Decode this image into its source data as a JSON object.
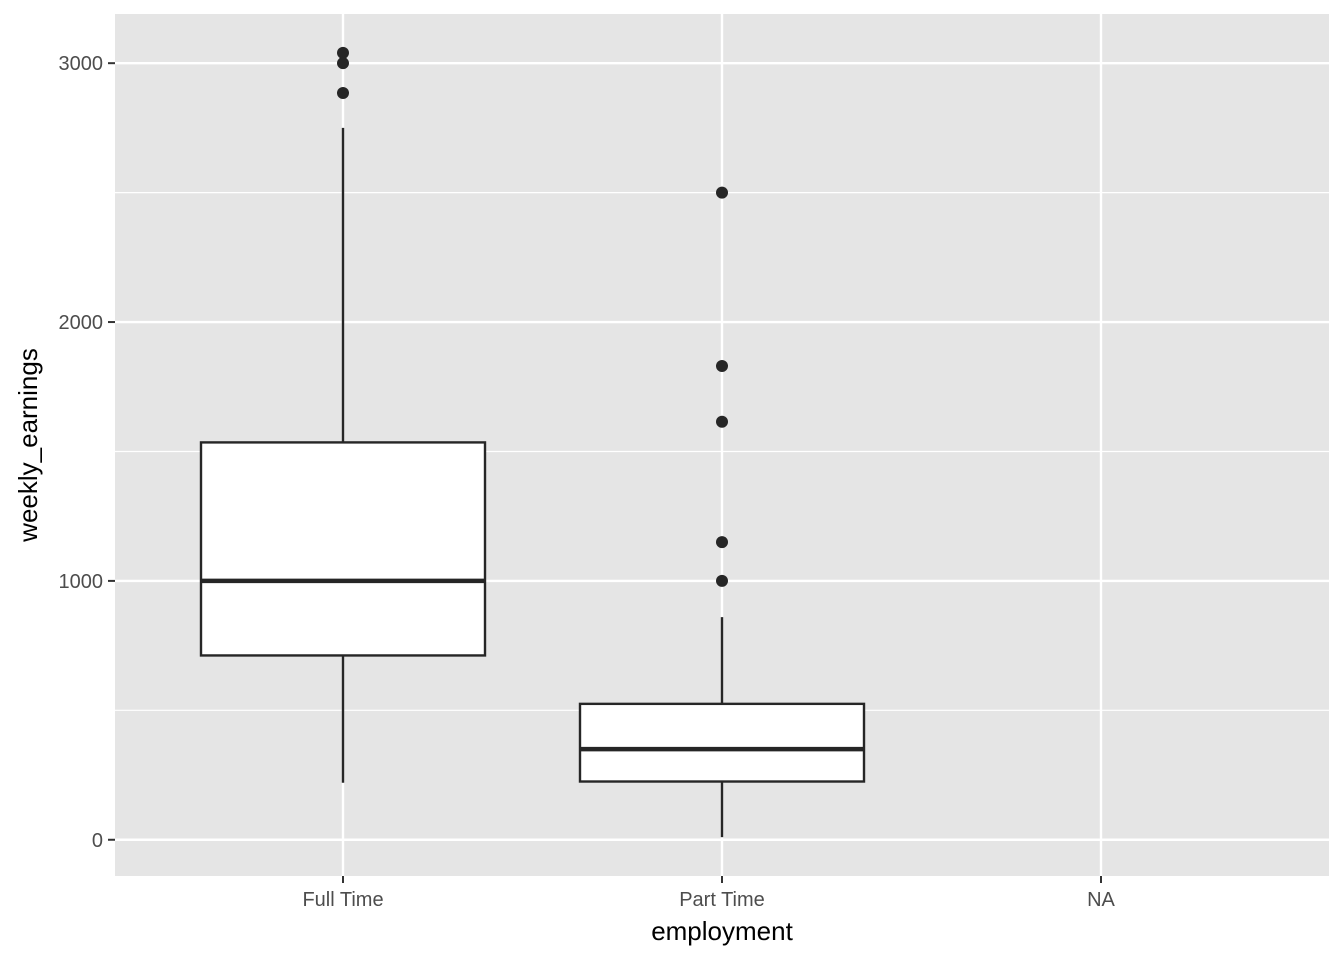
{
  "chart_data": {
    "type": "boxplot",
    "title": "",
    "xlabel": "employment",
    "ylabel": "weekly_earnings",
    "categories": [
      "Full Time",
      "Part Time",
      "NA"
    ],
    "ylim": [
      -140,
      3190
    ],
    "y_ticks": [
      0,
      1000,
      2000,
      3000
    ],
    "y_tick_labels": [
      "0",
      "1000",
      "2000",
      "3000"
    ],
    "y_minor_ticks": [
      500,
      1500,
      2500
    ],
    "grid": true,
    "legend": "none",
    "colors": {
      "panel_background": "#e5e5e5",
      "grid": "#ffffff",
      "box_fill": "#ffffff",
      "box_stroke": "#262626",
      "outlier": "#262626"
    },
    "boxes": [
      {
        "category": "Full Time",
        "whisker_low": 220,
        "q1": 712,
        "median": 1000,
        "q3": 1535,
        "whisker_high": 2750,
        "outliers": [
          2885,
          3000,
          3040
        ]
      },
      {
        "category": "Part Time",
        "whisker_low": 10,
        "q1": 225,
        "median": 350,
        "q3": 525,
        "whisker_high": 860,
        "outliers": [
          1000,
          1150,
          1615,
          1830,
          2500
        ]
      },
      {
        "category": "NA",
        "whisker_low": null,
        "q1": null,
        "median": null,
        "q3": null,
        "whisker_high": null,
        "outliers": []
      }
    ]
  }
}
